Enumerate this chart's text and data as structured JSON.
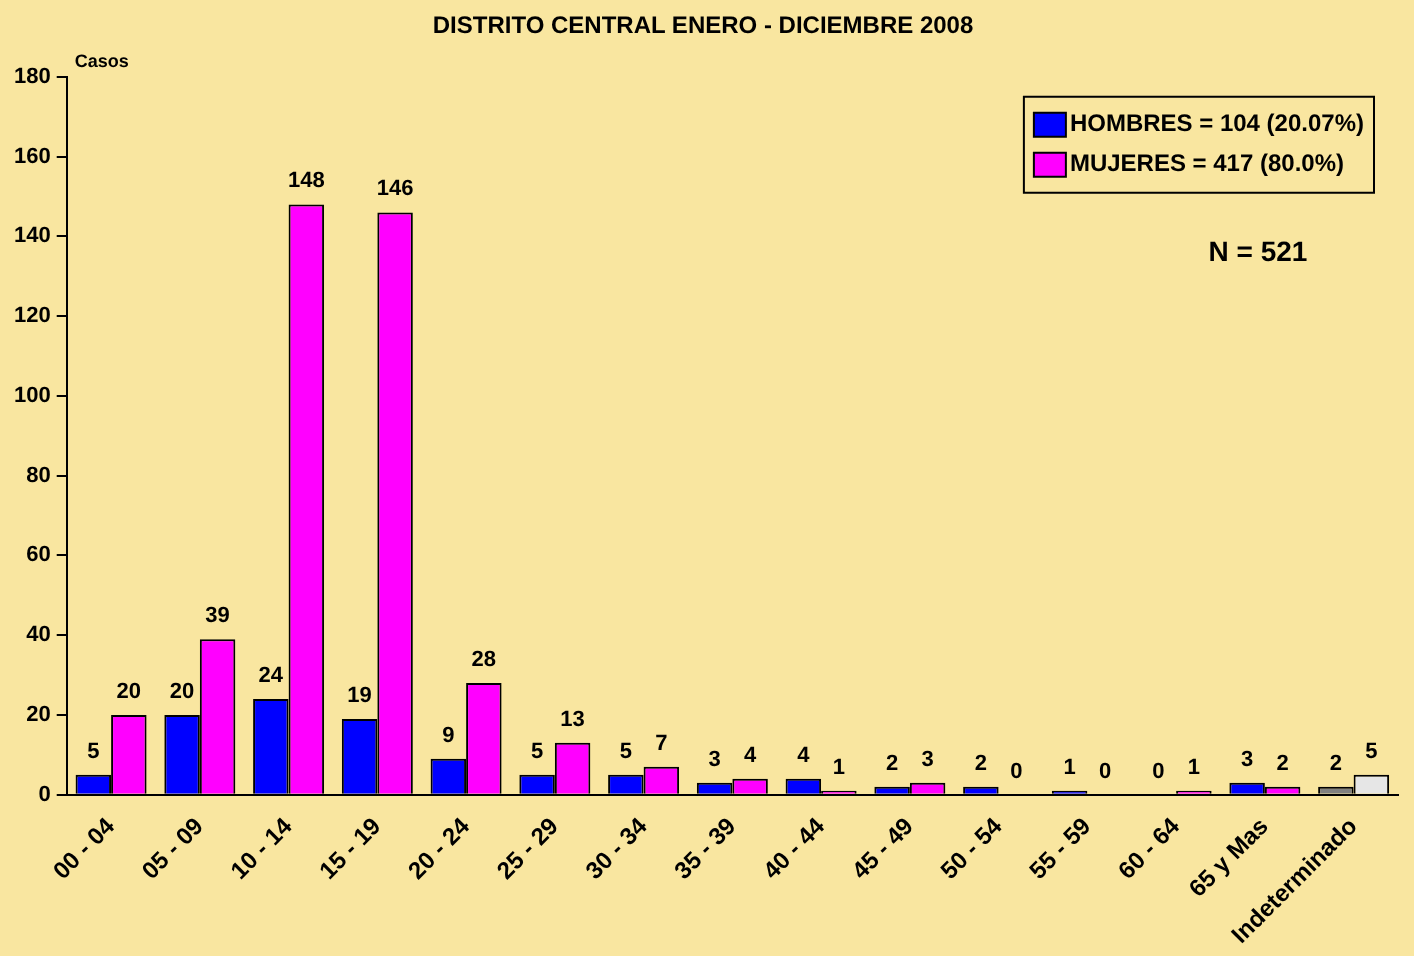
{
  "chart_data": {
    "type": "bar",
    "title": "DISTRITO CENTRAL ENERO - DICIEMBRE 2008",
    "ylabel": "Casos",
    "categories": [
      "00 - 04",
      "05 - 09",
      "10 - 14",
      "15 - 19",
      "20 - 24",
      "25 - 29",
      "30 - 34",
      "35 - 39",
      "40 - 44",
      "45 - 49",
      "50 - 54",
      "55 - 59",
      "60 - 64",
      "65 y Mas",
      "Indeterminado"
    ],
    "series": [
      {
        "name": "HOMBRES = 104 (20.07%)",
        "color": "#0000ff",
        "colors": [
          "#0000ff",
          "#0000ff",
          "#0000ff",
          "#0000ff",
          "#0000ff",
          "#0000ff",
          "#0000ff",
          "#0000ff",
          "#0000ff",
          "#0000ff",
          "#0000ff",
          "#0000ff",
          "#0000ff",
          "#0000ff",
          "#808080"
        ],
        "values": [
          5,
          20,
          24,
          19,
          9,
          5,
          5,
          3,
          4,
          2,
          2,
          1,
          0,
          3,
          2
        ]
      },
      {
        "name": "MUJERES = 417 (80.0%)",
        "color": "#ff00ff",
        "colors": [
          "#ff00ff",
          "#ff00ff",
          "#ff00ff",
          "#ff00ff",
          "#ff00ff",
          "#ff00ff",
          "#ff00ff",
          "#ff00ff",
          "#ff00ff",
          "#ff00ff",
          "#ff00ff",
          "#ff00ff",
          "#ff00ff",
          "#ff00ff",
          "#e6e6e6"
        ],
        "values": [
          20,
          39,
          148,
          146,
          28,
          13,
          7,
          4,
          1,
          3,
          0,
          0,
          1,
          2,
          5
        ]
      }
    ],
    "ylim": [
      0,
      180
    ],
    "yticks": [
      0,
      20,
      40,
      60,
      80,
      100,
      120,
      140,
      160,
      180
    ],
    "annotations": [
      "N = 521"
    ],
    "data_labels": true,
    "legend": "top right"
  }
}
